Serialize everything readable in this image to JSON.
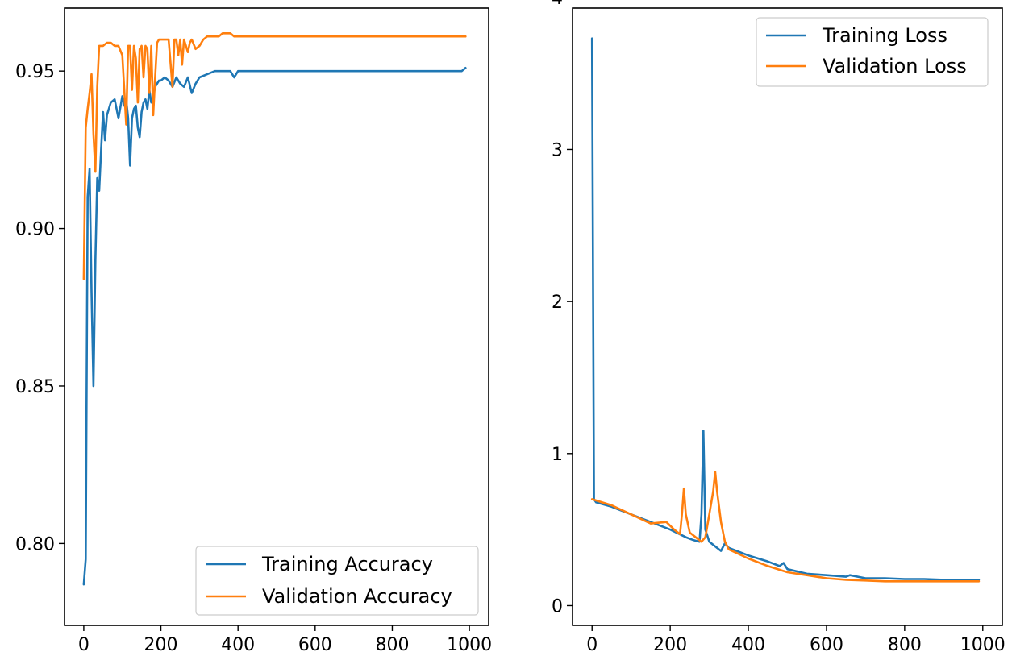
{
  "chart_data": [
    {
      "type": "line",
      "title": "",
      "xlabel": "",
      "ylabel": "",
      "xlim": [
        -50,
        1050
      ],
      "ylim": [
        0.774,
        0.97
      ],
      "xticks": [
        0,
        200,
        400,
        600,
        800,
        1000
      ],
      "yticks": [
        0.8,
        0.85,
        0.9,
        0.95
      ],
      "xtick_labels": [
        "0",
        "200",
        "400",
        "600",
        "800",
        "1000"
      ],
      "ytick_labels": [
        "0.80",
        "0.85",
        "0.90",
        "0.95"
      ],
      "grid": false,
      "legend_position": "lower-right",
      "series": [
        {
          "name": "Training Accuracy",
          "color": "#1f77b4",
          "x": [
            0,
            5,
            10,
            15,
            20,
            25,
            30,
            35,
            40,
            45,
            50,
            55,
            60,
            65,
            70,
            80,
            90,
            100,
            105,
            110,
            115,
            120,
            125,
            130,
            135,
            140,
            145,
            150,
            155,
            160,
            165,
            170,
            175,
            180,
            185,
            190,
            195,
            200,
            210,
            220,
            230,
            240,
            250,
            260,
            270,
            280,
            290,
            300,
            320,
            340,
            360,
            380,
            390,
            400,
            420,
            440,
            460,
            480,
            500,
            520,
            540,
            560,
            580,
            600,
            620,
            640,
            660,
            680,
            700,
            720,
            740,
            760,
            780,
            800,
            820,
            840,
            860,
            880,
            900,
            920,
            940,
            960,
            970,
            980,
            990
          ],
          "values": [
            0.787,
            0.795,
            0.91,
            0.919,
            0.88,
            0.85,
            0.89,
            0.916,
            0.912,
            0.925,
            0.937,
            0.928,
            0.936,
            0.938,
            0.94,
            0.941,
            0.935,
            0.942,
            0.939,
            0.941,
            0.935,
            0.92,
            0.935,
            0.938,
            0.939,
            0.932,
            0.929,
            0.937,
            0.94,
            0.941,
            0.938,
            0.944,
            0.94,
            0.942,
            0.945,
            0.946,
            0.947,
            0.947,
            0.948,
            0.947,
            0.945,
            0.948,
            0.946,
            0.945,
            0.948,
            0.943,
            0.946,
            0.948,
            0.949,
            0.95,
            0.95,
            0.95,
            0.948,
            0.95,
            0.95,
            0.95,
            0.95,
            0.95,
            0.95,
            0.95,
            0.95,
            0.95,
            0.95,
            0.95,
            0.95,
            0.95,
            0.95,
            0.95,
            0.95,
            0.95,
            0.95,
            0.95,
            0.95,
            0.95,
            0.95,
            0.95,
            0.95,
            0.95,
            0.95,
            0.95,
            0.95,
            0.95,
            0.95,
            0.95,
            0.951
          ]
        },
        {
          "name": "Validation Accuracy",
          "color": "#ff7f0e",
          "x": [
            0,
            5,
            10,
            15,
            20,
            25,
            30,
            35,
            40,
            45,
            50,
            60,
            70,
            80,
            90,
            100,
            110,
            115,
            120,
            125,
            130,
            135,
            140,
            145,
            150,
            155,
            160,
            165,
            170,
            175,
            180,
            185,
            190,
            195,
            200,
            210,
            220,
            230,
            235,
            240,
            245,
            250,
            255,
            260,
            265,
            270,
            275,
            280,
            290,
            300,
            310,
            320,
            330,
            340,
            350,
            360,
            370,
            380,
            390,
            400,
            500,
            600,
            700,
            800,
            900,
            990
          ],
          "values": [
            0.884,
            0.932,
            0.938,
            0.943,
            0.949,
            0.93,
            0.918,
            0.945,
            0.958,
            0.958,
            0.958,
            0.959,
            0.959,
            0.958,
            0.958,
            0.955,
            0.933,
            0.958,
            0.958,
            0.944,
            0.958,
            0.954,
            0.94,
            0.957,
            0.958,
            0.948,
            0.958,
            0.957,
            0.943,
            0.958,
            0.936,
            0.948,
            0.959,
            0.96,
            0.96,
            0.96,
            0.96,
            0.945,
            0.96,
            0.96,
            0.955,
            0.96,
            0.952,
            0.96,
            0.958,
            0.956,
            0.959,
            0.96,
            0.957,
            0.958,
            0.96,
            0.961,
            0.961,
            0.961,
            0.961,
            0.962,
            0.962,
            0.962,
            0.961,
            0.961,
            0.961,
            0.961,
            0.961,
            0.961,
            0.961,
            0.961
          ]
        }
      ],
      "legend": [
        "Training Accuracy",
        "Validation Accuracy"
      ]
    },
    {
      "type": "line",
      "title": "",
      "xlabel": "",
      "ylabel": "",
      "xlim": [
        -50,
        1050
      ],
      "ylim": [
        -0.13,
        3.93
      ],
      "xticks": [
        0,
        200,
        400,
        600,
        800,
        1000
      ],
      "yticks": [
        0,
        1,
        2,
        3,
        4
      ],
      "xtick_labels": [
        "0",
        "200",
        "400",
        "600",
        "800",
        "1000"
      ],
      "ytick_labels": [
        "0",
        "1",
        "2",
        "3",
        "4"
      ],
      "grid": false,
      "legend_position": "top-right",
      "series": [
        {
          "name": "Training Loss",
          "color": "#1f77b4",
          "x": [
            0,
            5,
            10,
            50,
            100,
            150,
            200,
            240,
            260,
            275,
            280,
            285,
            290,
            300,
            320,
            330,
            340,
            350,
            400,
            450,
            480,
            490,
            500,
            550,
            600,
            650,
            660,
            700,
            750,
            800,
            850,
            900,
            950,
            990
          ],
          "values": [
            3.73,
            0.7,
            0.68,
            0.65,
            0.6,
            0.55,
            0.5,
            0.45,
            0.43,
            0.42,
            0.6,
            1.15,
            0.5,
            0.42,
            0.38,
            0.36,
            0.41,
            0.38,
            0.33,
            0.29,
            0.26,
            0.28,
            0.24,
            0.21,
            0.2,
            0.19,
            0.2,
            0.18,
            0.18,
            0.175,
            0.175,
            0.17,
            0.17,
            0.17
          ]
        },
        {
          "name": "Validation Loss",
          "color": "#ff7f0e",
          "x": [
            0,
            50,
            100,
            150,
            190,
            210,
            225,
            230,
            235,
            240,
            250,
            280,
            290,
            300,
            310,
            315,
            320,
            330,
            340,
            350,
            400,
            450,
            500,
            550,
            600,
            650,
            700,
            750,
            800,
            850,
            900,
            950,
            990
          ],
          "values": [
            0.7,
            0.66,
            0.6,
            0.54,
            0.55,
            0.5,
            0.47,
            0.6,
            0.77,
            0.6,
            0.48,
            0.42,
            0.45,
            0.6,
            0.75,
            0.88,
            0.75,
            0.55,
            0.42,
            0.37,
            0.31,
            0.26,
            0.22,
            0.2,
            0.18,
            0.17,
            0.165,
            0.16,
            0.16,
            0.16,
            0.16,
            0.16,
            0.16
          ]
        }
      ],
      "legend": [
        "Training Loss",
        "Validation Loss"
      ]
    }
  ]
}
